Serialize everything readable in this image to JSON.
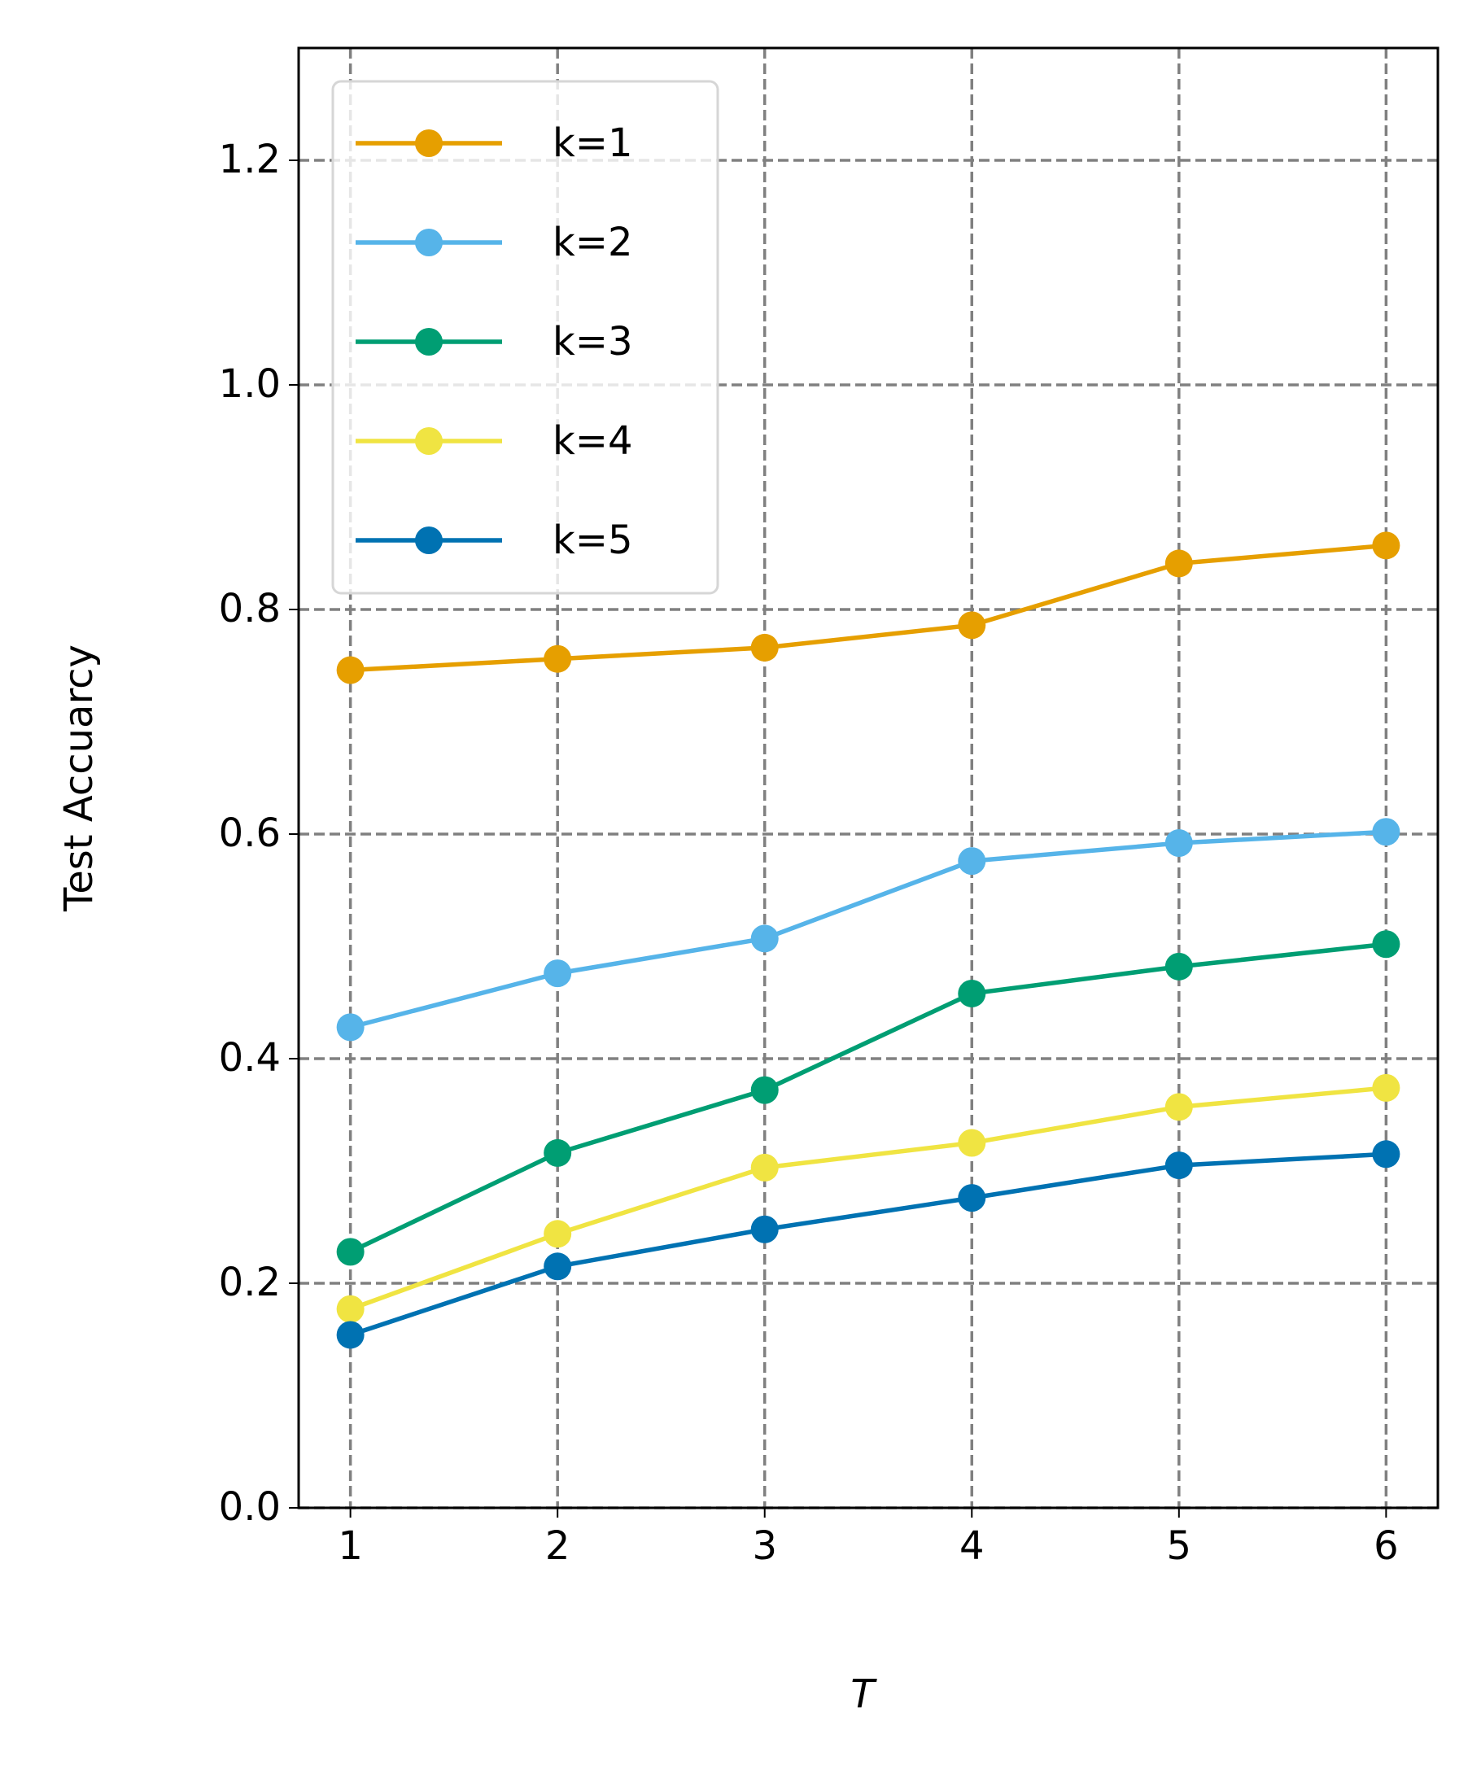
{
  "chart_data": {
    "type": "line",
    "x_label": "T",
    "y_label": "Test Accuarcy",
    "x": [
      1,
      2,
      3,
      4,
      5,
      6
    ],
    "series": [
      {
        "name": "k=1",
        "color": "#E69F00",
        "values": [
          0.746,
          0.756,
          0.766,
          0.786,
          0.841,
          0.857
        ]
      },
      {
        "name": "k=2",
        "color": "#56B4E9",
        "values": [
          0.428,
          0.476,
          0.507,
          0.576,
          0.592,
          0.602
        ]
      },
      {
        "name": "k=3",
        "color": "#009E73",
        "values": [
          0.228,
          0.316,
          0.372,
          0.458,
          0.482,
          0.502
        ]
      },
      {
        "name": "k=4",
        "color": "#F0E442",
        "values": [
          0.177,
          0.244,
          0.303,
          0.325,
          0.357,
          0.374
        ]
      },
      {
        "name": "k=5",
        "color": "#0072B2",
        "values": [
          0.154,
          0.215,
          0.248,
          0.276,
          0.305,
          0.315
        ]
      }
    ],
    "xlim": [
      0.75,
      6.25
    ],
    "ylim": [
      0,
      1.3
    ],
    "xticks": [
      1,
      2,
      3,
      4,
      5,
      6
    ],
    "yticks": [
      {
        "value": 0,
        "label": "0.0"
      },
      0.2,
      0.4,
      0.6,
      0.8,
      {
        "value": 1,
        "label": "1.0"
      },
      1.2
    ],
    "grid": true,
    "legend": "upper left"
  }
}
